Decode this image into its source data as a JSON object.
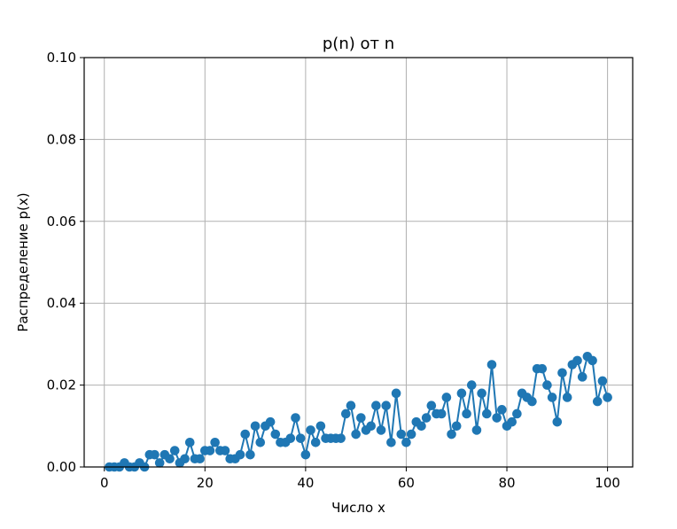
{
  "chart_data": {
    "type": "line",
    "title": "p(n) от n",
    "xlabel": "Число x",
    "ylabel": "Распределение p(x)",
    "xlim": [
      -4,
      105
    ],
    "ylim": [
      0,
      0.1
    ],
    "grid": true,
    "color": "#1f77b4",
    "marker": "circle",
    "xticks": [
      0,
      20,
      40,
      60,
      80,
      100
    ],
    "xtick_labels": [
      "0",
      "20",
      "40",
      "60",
      "80",
      "100"
    ],
    "yticks": [
      0,
      0.02,
      0.04,
      0.06,
      0.08,
      0.1
    ],
    "ytick_labels": [
      "0.00",
      "0.02",
      "0.04",
      "0.06",
      "0.08",
      "0.10"
    ],
    "series": [
      {
        "x": [
          1,
          2,
          3,
          4,
          5,
          6,
          7,
          8,
          9,
          10,
          11,
          12,
          13,
          14,
          15,
          16,
          17,
          18,
          19,
          20,
          21,
          22,
          23,
          24,
          25,
          26,
          27,
          28,
          29,
          30,
          31,
          32,
          33,
          34,
          35,
          36,
          37,
          38,
          39,
          40,
          41,
          42,
          43,
          44,
          45,
          46,
          47,
          48,
          49,
          50,
          51,
          52,
          53,
          54,
          55,
          56,
          57,
          58,
          59,
          60,
          61,
          62,
          63,
          64,
          65,
          66,
          67,
          68,
          69,
          70,
          71,
          72,
          73,
          74,
          75,
          76,
          77,
          78,
          79,
          80,
          81,
          82,
          83,
          84,
          85,
          86,
          87,
          88,
          89,
          90,
          91,
          92,
          93,
          94,
          95,
          96,
          97,
          98,
          99,
          100
        ],
        "y": [
          0,
          0,
          0,
          0.001,
          0,
          0,
          0.001,
          0,
          0.003,
          0.003,
          0.001,
          0.003,
          0.002,
          0.004,
          0.001,
          0.002,
          0.006,
          0.002,
          0.002,
          0.004,
          0.004,
          0.006,
          0.004,
          0.004,
          0.002,
          0.002,
          0.003,
          0.008,
          0.003,
          0.01,
          0.006,
          0.01,
          0.011,
          0.008,
          0.006,
          0.006,
          0.007,
          0.012,
          0.007,
          0.003,
          0.009,
          0.006,
          0.01,
          0.007,
          0.007,
          0.007,
          0.007,
          0.013,
          0.015,
          0.008,
          0.012,
          0.009,
          0.01,
          0.015,
          0.009,
          0.015,
          0.006,
          0.018,
          0.008,
          0.006,
          0.008,
          0.011,
          0.01,
          0.012,
          0.015,
          0.013,
          0.013,
          0.017,
          0.008,
          0.01,
          0.018,
          0.013,
          0.02,
          0.009,
          0.018,
          0.013,
          0.025,
          0.012,
          0.014,
          0.01,
          0.011,
          0.013,
          0.018,
          0.017,
          0.016,
          0.024,
          0.024,
          0.02,
          0.017,
          0.011,
          0.023,
          0.017,
          0.025,
          0.026,
          0.022,
          0.027,
          0.026,
          0.016,
          0.021,
          0.017
        ]
      }
    ]
  }
}
